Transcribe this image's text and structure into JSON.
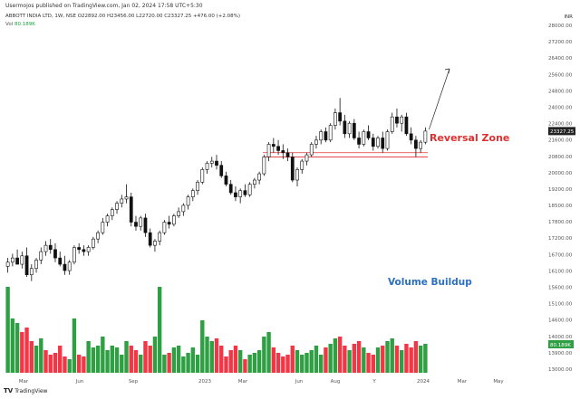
{
  "header": {
    "publisher_line": "Usermojos published on TradingView.com, Jan 02, 2024 17:58 UTC+5:30",
    "symbol_line_prefix": "ABBOTT INDIA LTD, 1W, NSE",
    "ohlc": "O22892.00 H23456.00 L22720.00 C23327.25 +476.00 (+2.08%)",
    "vol_label": "Vol",
    "vol_value": "80.189K"
  },
  "currency": "INR",
  "price_tag": "23327.25",
  "vol_tag": "80.189K",
  "annotations": {
    "reversal_zone": "Reversal Zone",
    "volume_buildup": "Volume Buildup"
  },
  "footer": {
    "logo_mark": "TV",
    "logo_text": "TradingView"
  },
  "colors": {
    "candle": "#111111",
    "reversal_line": "#e03030",
    "reversal_text": "#e03030",
    "volume_text": "#2a6fc0",
    "vol_up": "#2ea043",
    "vol_down": "#f23645",
    "axis_text": "#555555"
  },
  "chart_data": {
    "type": "candlestick",
    "timeframe": "1W",
    "y_ticks": [
      "28000.00",
      "27200.00",
      "26400.00",
      "25600.00",
      "24800.00",
      "24000.00",
      "22400.00",
      "21600.00",
      "20800.00",
      "20000.00",
      "19200.00",
      "18500.00",
      "17800.00",
      "17200.00",
      "16700.00",
      "16100.00",
      "15600.00",
      "15100.00",
      "14600.00",
      "14000.00",
      "13900.00",
      "13000.00"
    ],
    "x_ticks": [
      "Mar",
      "Jun",
      "Sep",
      "2023",
      "Mar",
      "Jun",
      "Aug",
      "Y",
      "2024",
      "Mar",
      "May"
    ],
    "ylim": [
      13000,
      28000
    ],
    "reversal_zone": [
      22100,
      22300
    ],
    "last_close": 23327.25,
    "projection": {
      "from": 23400,
      "to": 25400
    },
    "candles": [
      {
        "o": 16900,
        "h": 17300,
        "l": 16600,
        "c": 17100
      },
      {
        "o": 17100,
        "h": 17500,
        "l": 16900,
        "c": 17300
      },
      {
        "o": 17300,
        "h": 17700,
        "l": 17100,
        "c": 17000
      },
      {
        "o": 17000,
        "h": 17600,
        "l": 16800,
        "c": 17400
      },
      {
        "o": 17400,
        "h": 17800,
        "l": 16400,
        "c": 16500
      },
      {
        "o": 16500,
        "h": 17000,
        "l": 16200,
        "c": 16800
      },
      {
        "o": 16800,
        "h": 17300,
        "l": 16600,
        "c": 17200
      },
      {
        "o": 17200,
        "h": 17800,
        "l": 17000,
        "c": 17600
      },
      {
        "o": 17600,
        "h": 18100,
        "l": 17400,
        "c": 17900
      },
      {
        "o": 17900,
        "h": 18200,
        "l": 17500,
        "c": 17700
      },
      {
        "o": 17700,
        "h": 18000,
        "l": 17100,
        "c": 17300
      },
      {
        "o": 17300,
        "h": 17600,
        "l": 16900,
        "c": 17000
      },
      {
        "o": 17000,
        "h": 17400,
        "l": 16500,
        "c": 16700
      },
      {
        "o": 16700,
        "h": 17200,
        "l": 16500,
        "c": 17100
      },
      {
        "o": 17100,
        "h": 17900,
        "l": 17000,
        "c": 17800
      },
      {
        "o": 17800,
        "h": 18000,
        "l": 17500,
        "c": 17700
      },
      {
        "o": 17700,
        "h": 17900,
        "l": 17400,
        "c": 17600
      },
      {
        "o": 17600,
        "h": 17900,
        "l": 17400,
        "c": 17800
      },
      {
        "o": 17800,
        "h": 18300,
        "l": 17700,
        "c": 18200
      },
      {
        "o": 18200,
        "h": 18600,
        "l": 18000,
        "c": 18500
      },
      {
        "o": 18500,
        "h": 19200,
        "l": 18400,
        "c": 19000
      },
      {
        "o": 19000,
        "h": 19400,
        "l": 18800,
        "c": 19300
      },
      {
        "o": 19300,
        "h": 19700,
        "l": 19100,
        "c": 19600
      },
      {
        "o": 19600,
        "h": 20000,
        "l": 19400,
        "c": 19900
      },
      {
        "o": 19900,
        "h": 20300,
        "l": 19700,
        "c": 20100
      },
      {
        "o": 20100,
        "h": 20800,
        "l": 19900,
        "c": 20200
      },
      {
        "o": 20200,
        "h": 20400,
        "l": 18800,
        "c": 19000
      },
      {
        "o": 19000,
        "h": 19300,
        "l": 18600,
        "c": 18800
      },
      {
        "o": 18800,
        "h": 19300,
        "l": 18600,
        "c": 19200
      },
      {
        "o": 19200,
        "h": 19400,
        "l": 18300,
        "c": 18500
      },
      {
        "o": 18500,
        "h": 18700,
        "l": 17800,
        "c": 17900
      },
      {
        "o": 17900,
        "h": 18200,
        "l": 17600,
        "c": 18100
      },
      {
        "o": 18100,
        "h": 18600,
        "l": 17900,
        "c": 18500
      },
      {
        "o": 18500,
        "h": 19100,
        "l": 18400,
        "c": 19000
      },
      {
        "o": 19000,
        "h": 19300,
        "l": 18700,
        "c": 18900
      },
      {
        "o": 18900,
        "h": 19400,
        "l": 18800,
        "c": 19300
      },
      {
        "o": 19300,
        "h": 19700,
        "l": 19200,
        "c": 19500
      },
      {
        "o": 19500,
        "h": 19900,
        "l": 19300,
        "c": 19800
      },
      {
        "o": 19800,
        "h": 20300,
        "l": 19600,
        "c": 20200
      },
      {
        "o": 20200,
        "h": 20600,
        "l": 20000,
        "c": 20500
      },
      {
        "o": 20500,
        "h": 21000,
        "l": 20300,
        "c": 20900
      },
      {
        "o": 20900,
        "h": 21600,
        "l": 20800,
        "c": 21500
      },
      {
        "o": 21500,
        "h": 21900,
        "l": 21300,
        "c": 21800
      },
      {
        "o": 21800,
        "h": 22100,
        "l": 21600,
        "c": 21900
      },
      {
        "o": 21900,
        "h": 22200,
        "l": 21500,
        "c": 21700
      },
      {
        "o": 21700,
        "h": 21900,
        "l": 21100,
        "c": 21200
      },
      {
        "o": 21200,
        "h": 21400,
        "l": 20700,
        "c": 20800
      },
      {
        "o": 20800,
        "h": 21000,
        "l": 20300,
        "c": 20400
      },
      {
        "o": 20400,
        "h": 20700,
        "l": 20000,
        "c": 20200
      },
      {
        "o": 20200,
        "h": 20600,
        "l": 19900,
        "c": 20500
      },
      {
        "o": 20500,
        "h": 20800,
        "l": 20200,
        "c": 20300
      },
      {
        "o": 20300,
        "h": 20900,
        "l": 20200,
        "c": 20800
      },
      {
        "o": 20800,
        "h": 21100,
        "l": 20600,
        "c": 21000
      },
      {
        "o": 21000,
        "h": 21400,
        "l": 20800,
        "c": 21300
      },
      {
        "o": 21300,
        "h": 22200,
        "l": 21200,
        "c": 22100
      },
      {
        "o": 22100,
        "h": 22800,
        "l": 21900,
        "c": 22700
      },
      {
        "o": 22700,
        "h": 23000,
        "l": 22300,
        "c": 22600
      },
      {
        "o": 22600,
        "h": 22900,
        "l": 22200,
        "c": 22400
      },
      {
        "o": 22400,
        "h": 22700,
        "l": 22000,
        "c": 22300
      },
      {
        "o": 22300,
        "h": 22500,
        "l": 21900,
        "c": 22100
      },
      {
        "o": 22100,
        "h": 22300,
        "l": 20900,
        "c": 21000
      },
      {
        "o": 21000,
        "h": 21600,
        "l": 20700,
        "c": 21500
      },
      {
        "o": 21500,
        "h": 22000,
        "l": 21300,
        "c": 21900
      },
      {
        "o": 21900,
        "h": 22300,
        "l": 21700,
        "c": 22200
      },
      {
        "o": 22200,
        "h": 22800,
        "l": 22100,
        "c": 22700
      },
      {
        "o": 22700,
        "h": 23100,
        "l": 22500,
        "c": 22900
      },
      {
        "o": 22900,
        "h": 23400,
        "l": 22700,
        "c": 23300
      },
      {
        "o": 23300,
        "h": 23500,
        "l": 22800,
        "c": 22900
      },
      {
        "o": 22900,
        "h": 23700,
        "l": 22800,
        "c": 23600
      },
      {
        "o": 23600,
        "h": 24400,
        "l": 23400,
        "c": 24200
      },
      {
        "o": 24200,
        "h": 24900,
        "l": 23600,
        "c": 23800
      },
      {
        "o": 23800,
        "h": 24100,
        "l": 23000,
        "c": 23200
      },
      {
        "o": 23200,
        "h": 23800,
        "l": 23000,
        "c": 23700
      },
      {
        "o": 23700,
        "h": 23900,
        "l": 22900,
        "c": 23000
      },
      {
        "o": 23000,
        "h": 23300,
        "l": 22500,
        "c": 22700
      },
      {
        "o": 22700,
        "h": 23400,
        "l": 22600,
        "c": 23300
      },
      {
        "o": 23300,
        "h": 23600,
        "l": 22900,
        "c": 23000
      },
      {
        "o": 23000,
        "h": 23200,
        "l": 22400,
        "c": 22600
      },
      {
        "o": 22600,
        "h": 23100,
        "l": 22500,
        "c": 23000
      },
      {
        "o": 23000,
        "h": 23300,
        "l": 22300,
        "c": 22500
      },
      {
        "o": 22500,
        "h": 23400,
        "l": 22400,
        "c": 23300
      },
      {
        "o": 23300,
        "h": 24200,
        "l": 23200,
        "c": 24000
      },
      {
        "o": 24000,
        "h": 24400,
        "l": 23500,
        "c": 23700
      },
      {
        "o": 23700,
        "h": 24100,
        "l": 23300,
        "c": 24000
      },
      {
        "o": 24000,
        "h": 24200,
        "l": 23100,
        "c": 23200
      },
      {
        "o": 23200,
        "h": 23500,
        "l": 22700,
        "c": 22900
      },
      {
        "o": 22900,
        "h": 23100,
        "l": 22100,
        "c": 22500
      },
      {
        "o": 22500,
        "h": 22900,
        "l": 22300,
        "c": 22800
      },
      {
        "o": 22800,
        "h": 23500,
        "l": 22700,
        "c": 23327
      }
    ],
    "volume": [
      {
        "v": 95,
        "up": true
      },
      {
        "v": 60,
        "up": true
      },
      {
        "v": 55,
        "up": true
      },
      {
        "v": 45,
        "up": false
      },
      {
        "v": 50,
        "up": false
      },
      {
        "v": 35,
        "up": false
      },
      {
        "v": 30,
        "up": true
      },
      {
        "v": 38,
        "up": true
      },
      {
        "v": 25,
        "up": false
      },
      {
        "v": 20,
        "up": false
      },
      {
        "v": 22,
        "up": false
      },
      {
        "v": 30,
        "up": false
      },
      {
        "v": 18,
        "up": false
      },
      {
        "v": 15,
        "up": true
      },
      {
        "v": 60,
        "up": true
      },
      {
        "v": 20,
        "up": false
      },
      {
        "v": 18,
        "up": false
      },
      {
        "v": 35,
        "up": true
      },
      {
        "v": 28,
        "up": true
      },
      {
        "v": 30,
        "up": true
      },
      {
        "v": 40,
        "up": true
      },
      {
        "v": 25,
        "up": true
      },
      {
        "v": 30,
        "up": true
      },
      {
        "v": 28,
        "up": true
      },
      {
        "v": 20,
        "up": true
      },
      {
        "v": 35,
        "up": true
      },
      {
        "v": 30,
        "up": false
      },
      {
        "v": 25,
        "up": false
      },
      {
        "v": 20,
        "up": true
      },
      {
        "v": 35,
        "up": false
      },
      {
        "v": 30,
        "up": false
      },
      {
        "v": 40,
        "up": true
      },
      {
        "v": 95,
        "up": true
      },
      {
        "v": 20,
        "up": true
      },
      {
        "v": 22,
        "up": false
      },
      {
        "v": 28,
        "up": true
      },
      {
        "v": 30,
        "up": true
      },
      {
        "v": 18,
        "up": true
      },
      {
        "v": 22,
        "up": true
      },
      {
        "v": 28,
        "up": true
      },
      {
        "v": 20,
        "up": true
      },
      {
        "v": 58,
        "up": true
      },
      {
        "v": 40,
        "up": true
      },
      {
        "v": 35,
        "up": true
      },
      {
        "v": 38,
        "up": false
      },
      {
        "v": 30,
        "up": false
      },
      {
        "v": 18,
        "up": false
      },
      {
        "v": 25,
        "up": false
      },
      {
        "v": 30,
        "up": false
      },
      {
        "v": 25,
        "up": true
      },
      {
        "v": 15,
        "up": false
      },
      {
        "v": 20,
        "up": true
      },
      {
        "v": 22,
        "up": true
      },
      {
        "v": 25,
        "up": true
      },
      {
        "v": 40,
        "up": true
      },
      {
        "v": 45,
        "up": true
      },
      {
        "v": 28,
        "up": false
      },
      {
        "v": 22,
        "up": false
      },
      {
        "v": 18,
        "up": false
      },
      {
        "v": 20,
        "up": false
      },
      {
        "v": 30,
        "up": false
      },
      {
        "v": 25,
        "up": true
      },
      {
        "v": 20,
        "up": true
      },
      {
        "v": 22,
        "up": true
      },
      {
        "v": 25,
        "up": true
      },
      {
        "v": 30,
        "up": true
      },
      {
        "v": 20,
        "up": true
      },
      {
        "v": 28,
        "up": false
      },
      {
        "v": 32,
        "up": true
      },
      {
        "v": 38,
        "up": true
      },
      {
        "v": 40,
        "up": false
      },
      {
        "v": 30,
        "up": false
      },
      {
        "v": 25,
        "up": true
      },
      {
        "v": 32,
        "up": false
      },
      {
        "v": 35,
        "up": false
      },
      {
        "v": 28,
        "up": true
      },
      {
        "v": 22,
        "up": false
      },
      {
        "v": 20,
        "up": false
      },
      {
        "v": 28,
        "up": true
      },
      {
        "v": 30,
        "up": false
      },
      {
        "v": 35,
        "up": true
      },
      {
        "v": 38,
        "up": true
      },
      {
        "v": 30,
        "up": false
      },
      {
        "v": 25,
        "up": true
      },
      {
        "v": 32,
        "up": false
      },
      {
        "v": 28,
        "up": false
      },
      {
        "v": 35,
        "up": false
      },
      {
        "v": 30,
        "up": true
      },
      {
        "v": 32,
        "up": true
      }
    ]
  }
}
